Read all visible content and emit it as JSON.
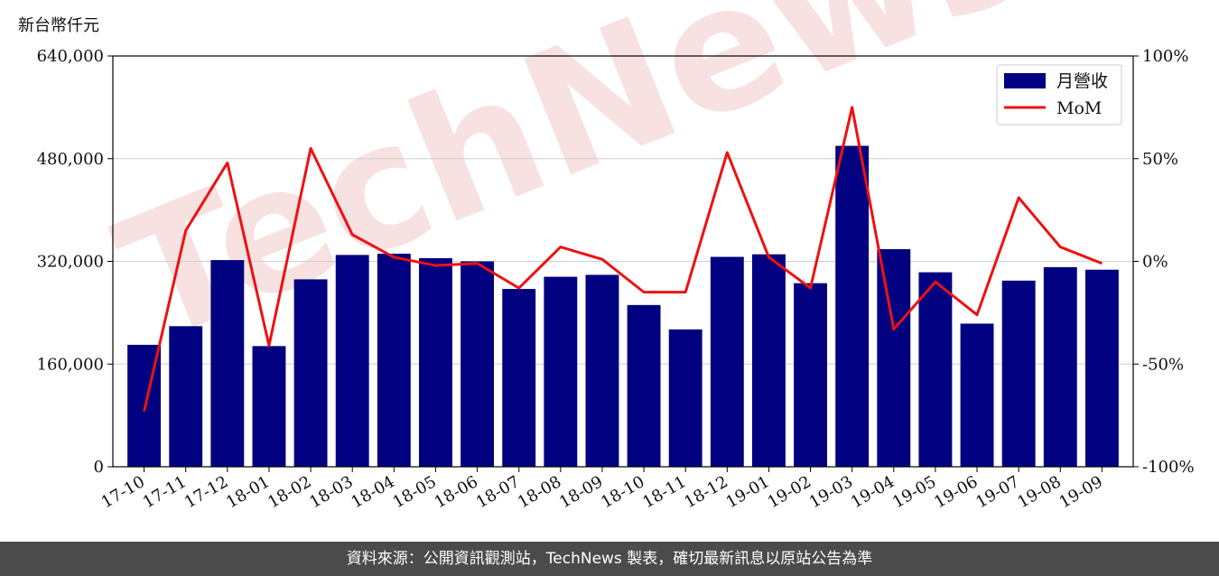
{
  "unit_label": "新台幣仟元",
  "footer_text": "資料來源：公開資訊觀測站，TechNews 製表，確切最新訊息以原站公告為準",
  "watermark_text": "TechNews",
  "chart_data": {
    "type": "bar+line",
    "categories": [
      "17-10",
      "17-11",
      "17-12",
      "18-01",
      "18-02",
      "18-03",
      "18-04",
      "18-05",
      "18-06",
      "18-07",
      "18-08",
      "18-09",
      "18-10",
      "18-11",
      "18-12",
      "19-01",
      "19-02",
      "19-03",
      "19-04",
      "19-05",
      "19-06",
      "19-07",
      "19-08",
      "19-09"
    ],
    "series": [
      {
        "name": "月營收",
        "type": "bar",
        "axis": "left",
        "color": "#000080",
        "values": [
          190000,
          219000,
          322000,
          188000,
          292000,
          330000,
          332000,
          325000,
          320000,
          277000,
          296000,
          299000,
          252000,
          214000,
          327000,
          331000,
          286000,
          500000,
          339000,
          303000,
          223000,
          290000,
          311000,
          307000
        ]
      },
      {
        "name": "MoM",
        "type": "line",
        "axis": "right",
        "color": "#ee1111",
        "values": [
          -73,
          15,
          48,
          -41,
          55,
          13,
          2,
          -2,
          -1,
          -13,
          7,
          1,
          -15,
          -15,
          53,
          2,
          -13,
          75,
          -33,
          -10,
          -26,
          31,
          7,
          -1
        ]
      }
    ],
    "y_left": {
      "lim": [
        0,
        640000
      ],
      "ticks": [
        0,
        160000,
        320000,
        480000,
        640000
      ],
      "tick_labels": [
        "0",
        "160,000",
        "320,000",
        "480,000",
        "640,000"
      ]
    },
    "y_right": {
      "lim": [
        -100,
        100
      ],
      "ticks": [
        -100,
        -50,
        0,
        50,
        100
      ],
      "tick_labels": [
        "-100%",
        "-50%",
        "0%",
        "50%",
        "100%"
      ]
    },
    "grid": "horizontal",
    "legend_position": "top-right",
    "colors": {
      "bar": "#000080",
      "line": "#ee1111",
      "grid": "#d0d0d0",
      "footer_bg": "#4b4b4b",
      "watermark": "#f0c8c8"
    }
  }
}
